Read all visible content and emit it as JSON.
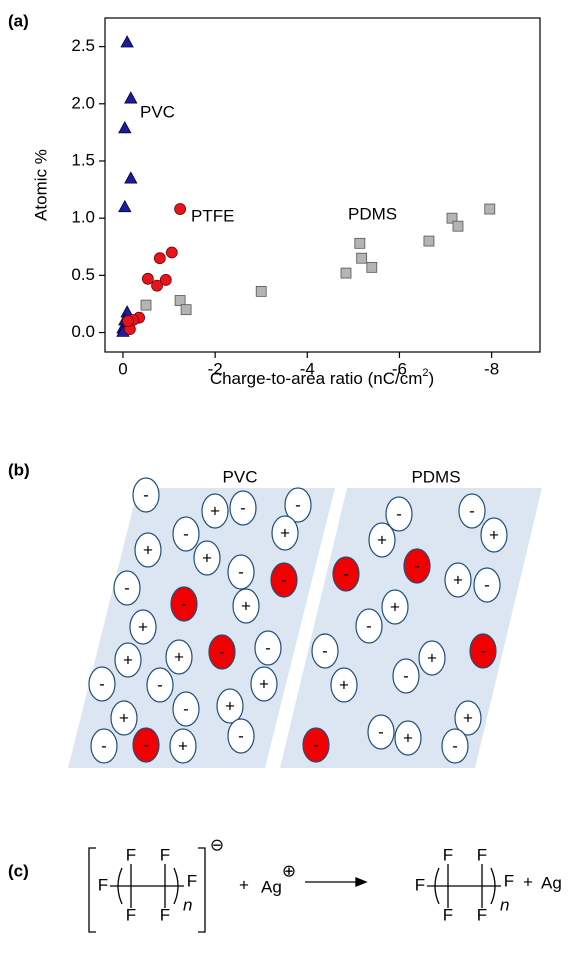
{
  "chart_data": {
    "type": "scatter",
    "panel_label": "(a)",
    "x_label": [
      "Charge-to-area ratio (nC/cm",
      "2",
      ")"
    ],
    "y_label": "Atomic %",
    "xlim": [
      0.39,
      -9.05
    ],
    "ylim": [
      -0.17,
      2.75
    ],
    "xticks": [
      0,
      -2,
      -4,
      -6,
      -8
    ],
    "yticks": [
      {
        "value": 0,
        "label": "0.0"
      },
      0.5,
      {
        "value": 1,
        "label": "1.0"
      },
      1.5,
      {
        "value": 2,
        "label": "2.0"
      },
      2.5
    ],
    "series": [
      {
        "name": "PVC",
        "color": "#1c1c9c",
        "marker": "triangle",
        "x": [
          -0.09,
          -0.17,
          -0.04,
          -0.17,
          -0.04,
          -0.09,
          -0.04,
          0,
          0
        ],
        "values": [
          2.54,
          2.05,
          1.79,
          1.35,
          1.1,
          0.18,
          0.11,
          0.04,
          0.01
        ]
      },
      {
        "name": "PTFE",
        "color": "#e8141c",
        "marker": "circle",
        "x": [
          -1.24,
          -1.06,
          -0.8,
          -0.54,
          -0.74,
          -0.93,
          -0.35,
          -0.22,
          -0.15,
          -0.11
        ],
        "values": [
          1.08,
          0.7,
          0.65,
          0.47,
          0.41,
          0.46,
          0.13,
          0.11,
          0.03,
          0.1
        ]
      },
      {
        "name": "PDMS",
        "color": "#b4b4b4",
        "marker": "square",
        "x": [
          -0.5,
          -1.24,
          -1.37,
          -3.0,
          -4.84,
          -5.4,
          -5.14,
          -5.18,
          -6.64,
          -7.14,
          -7.27,
          -7.96
        ],
        "values": [
          0.24,
          0.28,
          0.2,
          0.36,
          0.52,
          0.57,
          0.78,
          0.65,
          0.8,
          1.0,
          0.93,
          1.08
        ]
      }
    ]
  },
  "diagram": {
    "panel_label": "(b)",
    "blocks": [
      {
        "label": "PVC",
        "charges": [
          "-",
          "+",
          "-",
          "-",
          "-",
          "+",
          "+",
          "+",
          "-",
          "-",
          "-",
          "-",
          "+",
          "+",
          "-",
          "-",
          "+",
          "+",
          "-",
          "-",
          "+",
          "-",
          "+",
          "+",
          "-",
          "-",
          "-",
          "+"
        ]
      },
      {
        "label": "PDMS",
        "charges": [
          "-",
          "-",
          "+",
          "+",
          "-",
          "-",
          "+",
          "-",
          "+",
          "-",
          "-",
          "+",
          "-",
          "+",
          "-",
          "+",
          "-",
          "+",
          "-",
          "-"
        ]
      }
    ]
  },
  "reaction": {
    "panel_label": "(c)",
    "reactant": {
      "atoms": [
        "F",
        "F",
        "F",
        "F",
        "F",
        "F"
      ],
      "repeat": "n",
      "charge": "⊖"
    },
    "plus_1": "+",
    "cation": {
      "symbol": "Ag",
      "charge": "⊕"
    },
    "product": {
      "atoms": [
        "F",
        "F",
        "F",
        "F",
        "F",
        "F"
      ],
      "repeat": "n"
    },
    "plus_2": "+",
    "metal": "Ag"
  }
}
